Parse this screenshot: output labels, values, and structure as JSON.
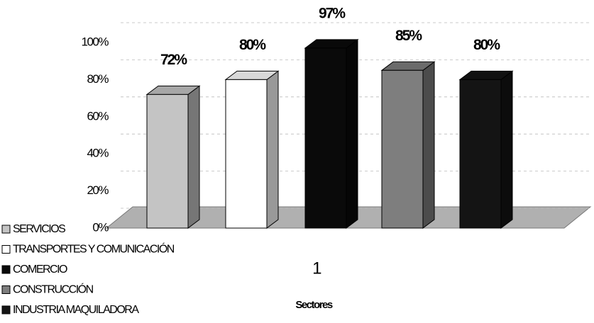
{
  "chart_data": {
    "type": "bar3d",
    "categories": [
      "1"
    ],
    "x_label": "Sectores",
    "ylim": [
      0,
      100
    ],
    "yticks": [
      {
        "value": 0,
        "label": "0%"
      },
      {
        "value": 20,
        "label": "20%"
      },
      {
        "value": 40,
        "label": "40%"
      },
      {
        "value": 60,
        "label": "60%"
      },
      {
        "value": 80,
        "label": "80%"
      },
      {
        "value": 100,
        "label": "100%"
      }
    ],
    "grid": true,
    "legend": "bottom-left",
    "series": [
      {
        "name": "SERVICIOS",
        "color": "#c4c4c4",
        "values": [
          72
        ],
        "value_labels": [
          "72%"
        ]
      },
      {
        "name": "TRANSPORTES Y COMUNICACIÓN",
        "color": "#ffffff",
        "values": [
          80
        ],
        "value_labels": [
          "80%"
        ]
      },
      {
        "name": "COMERCIO",
        "color": "#0a0a0a",
        "values": [
          97
        ],
        "value_labels": [
          "97%"
        ]
      },
      {
        "name": "CONSTRUCCIÓN",
        "color": "#7e7e7e",
        "values": [
          85
        ],
        "value_labels": [
          "85%"
        ]
      },
      {
        "name": "INDUSTRIA MAQUILADORA",
        "color": "#141414",
        "values": [
          80
        ],
        "value_labels": [
          "80%"
        ]
      }
    ]
  }
}
